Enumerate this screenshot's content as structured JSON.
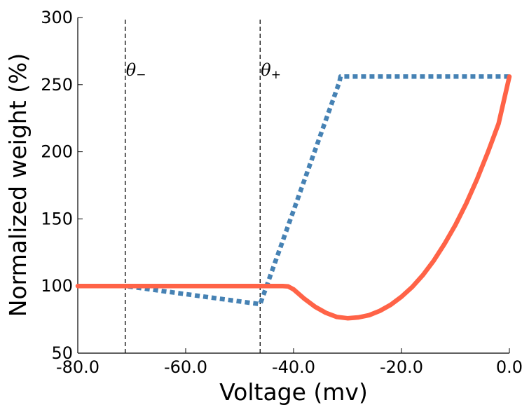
{
  "chart_data": {
    "type": "line",
    "title": "",
    "xlabel": "Voltage (mv)",
    "ylabel": "Normalized weight (%)",
    "xlim": [
      -80,
      0
    ],
    "ylim": [
      50,
      300
    ],
    "xticks": [
      -80,
      -60,
      -40,
      -20,
      0
    ],
    "xtick_labels": [
      "-80.0",
      "-60.0",
      "-40.0",
      "-20.0",
      "0.0"
    ],
    "yticks": [
      50,
      100,
      150,
      200,
      250,
      300
    ],
    "ytick_labels": [
      "50",
      "100",
      "150",
      "200",
      "250",
      "300"
    ],
    "grid": false,
    "annotations": [
      {
        "symbol": "θ",
        "subscript": "−",
        "x": -71.2
      },
      {
        "symbol": "θ",
        "subscript": "+",
        "x": -46.2
      }
    ],
    "series": [
      {
        "style": "dotted",
        "color": "#4682b4",
        "x": [
          -80,
          -71.2,
          -46.2,
          -31.5,
          -31.3,
          0
        ],
        "y": [
          100,
          100,
          86.5,
          252,
          256,
          256
        ]
      },
      {
        "style": "solid",
        "color": "#ff6347",
        "x": [
          -80,
          -42,
          -41,
          -40,
          -39,
          -38,
          -37,
          -36,
          -34,
          -32,
          -30,
          -28,
          -26,
          -24,
          -22,
          -20,
          -18,
          -16,
          -14,
          -12,
          -10,
          -8,
          -6,
          -4,
          -2,
          0
        ],
        "y": [
          100,
          100,
          99.7,
          97.5,
          94,
          90.5,
          87.5,
          84.5,
          80,
          77,
          76,
          76.6,
          78.3,
          81.5,
          86,
          92,
          99.3,
          108.3,
          119,
          131.5,
          145.5,
          161.5,
          179.5,
          199.5,
          221,
          256
        ]
      }
    ]
  }
}
